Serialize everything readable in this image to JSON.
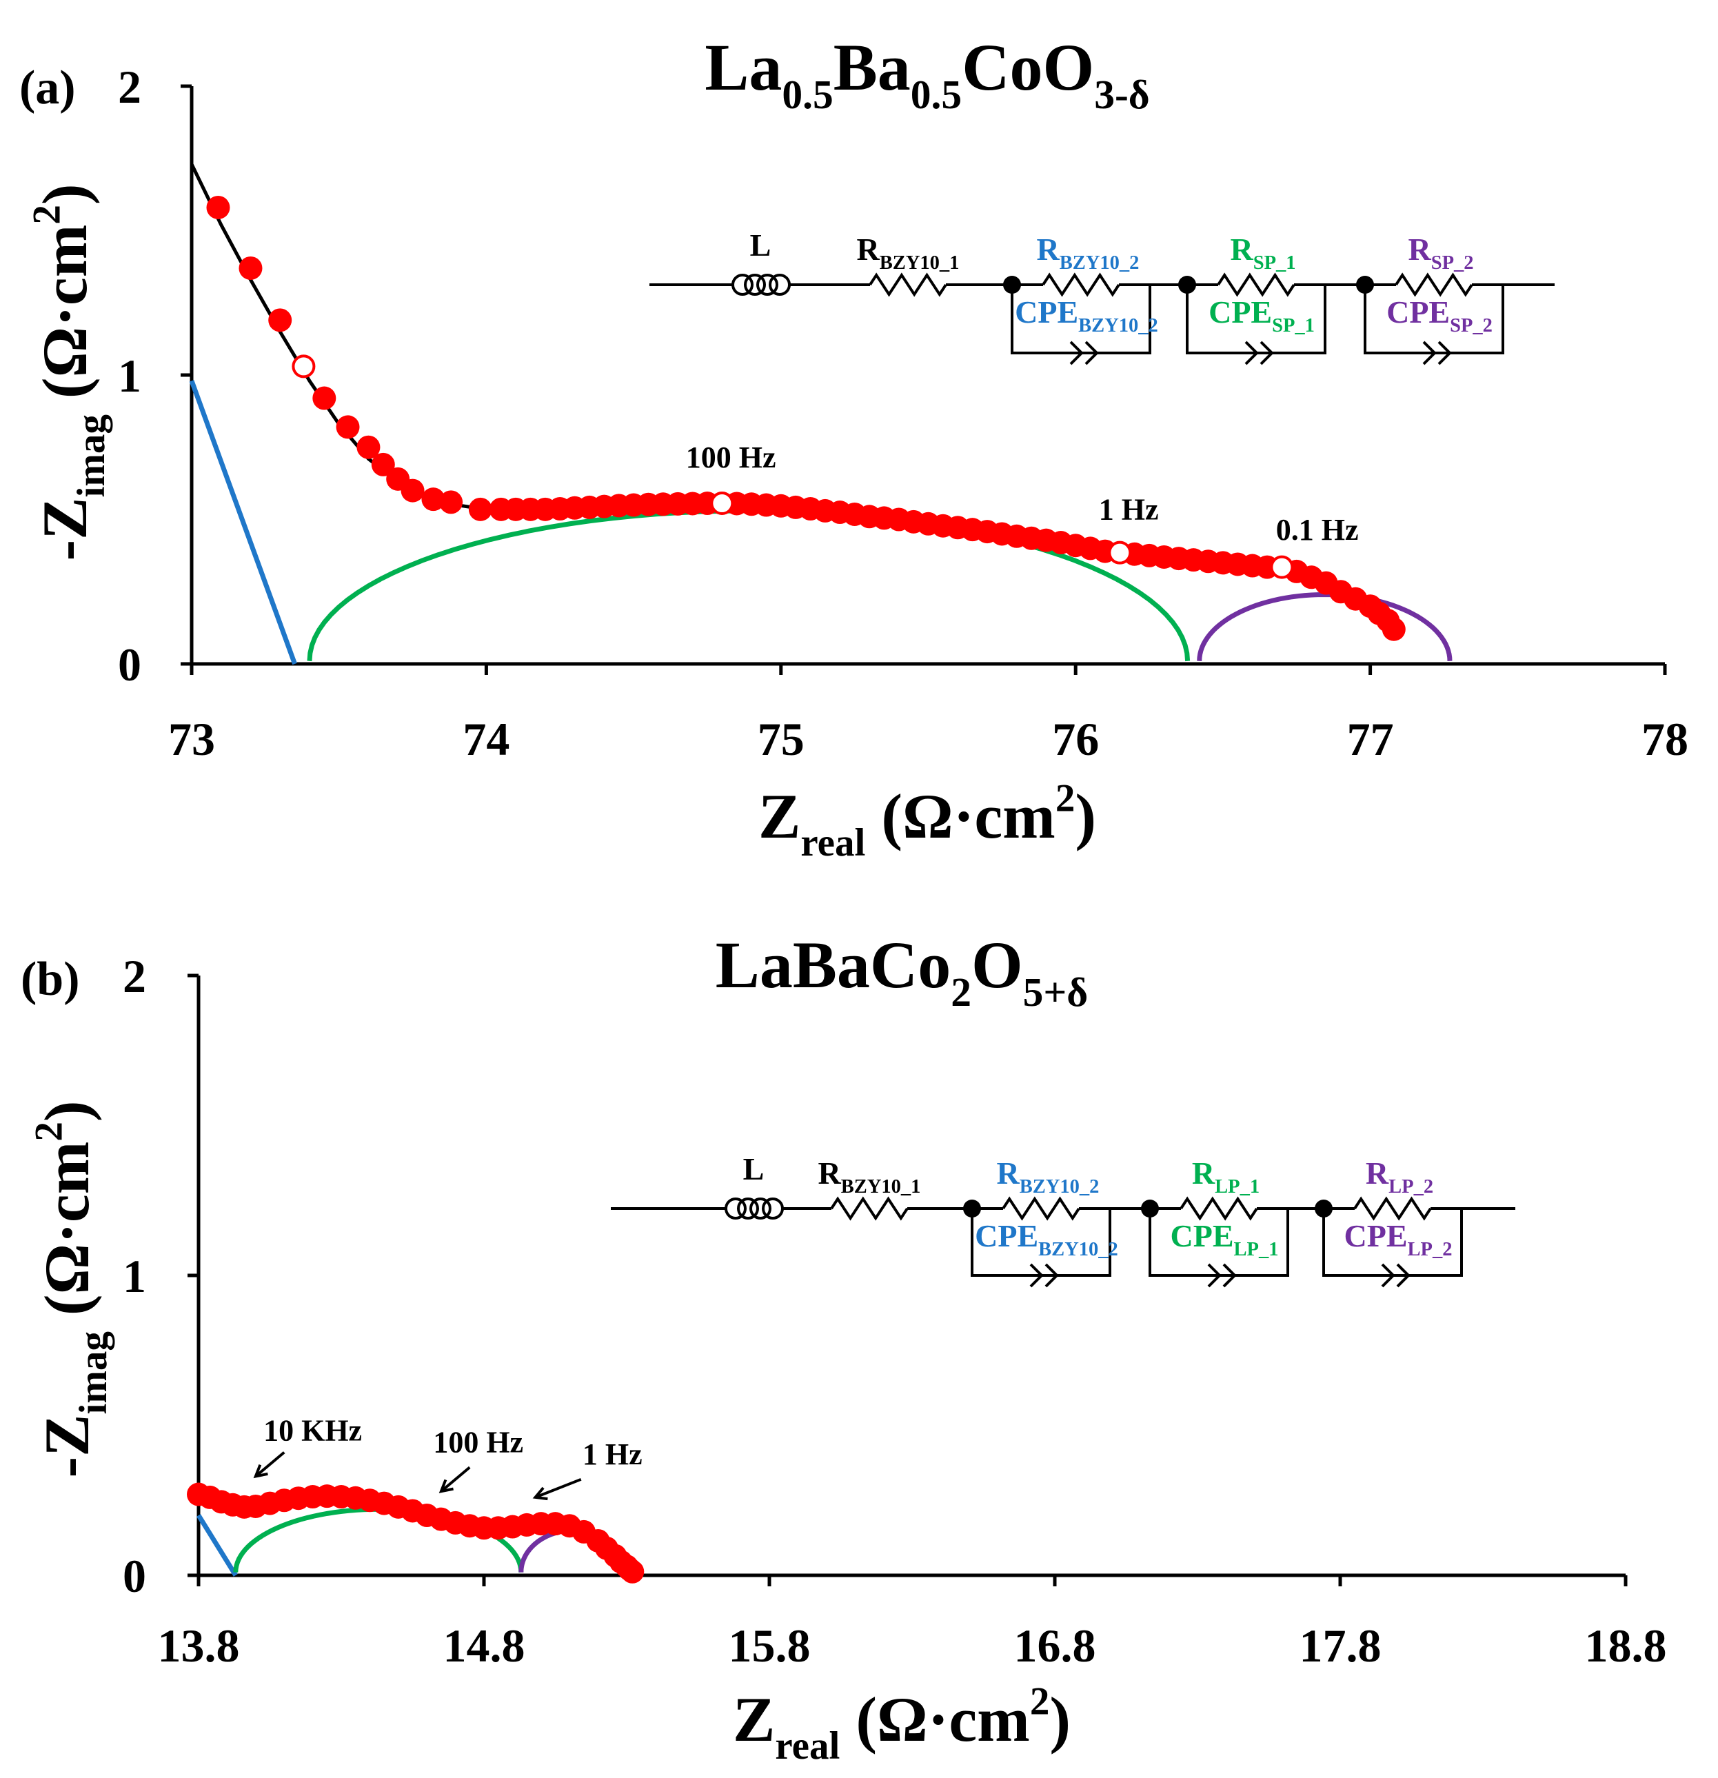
{
  "colors": {
    "data": "#ff0000",
    "fit": "#000000",
    "bzy10": "#1f77c9",
    "sp1": "#00b050",
    "sp2": "#7030a0"
  },
  "chart_data": [
    {
      "type": "scatter",
      "panel_label": "(a)",
      "title_parts": [
        {
          "t": "La"
        },
        {
          "t": "0.5",
          "sub": true
        },
        {
          "t": "Ba"
        },
        {
          "t": "0.5",
          "sub": true
        },
        {
          "t": "CoO"
        },
        {
          "t": "3-δ",
          "sub": true
        }
      ],
      "xlabel_parts": [
        {
          "t": "Z"
        },
        {
          "t": "real",
          "sub": true
        },
        {
          "t": " (Ω·cm"
        },
        {
          "t": "2",
          "sup": true
        },
        {
          "t": ")"
        }
      ],
      "ylabel_parts": [
        {
          "t": "-Z"
        },
        {
          "t": "imag",
          "sub": true
        },
        {
          "t": " (Ω·cm"
        },
        {
          "t": "2",
          "sup": true
        },
        {
          "t": ")"
        }
      ],
      "xlim": [
        73,
        78
      ],
      "ylim": [
        0,
        2
      ],
      "xticks": [
        73,
        74,
        75,
        76,
        77,
        78
      ],
      "xtick_labels": [
        "73",
        "74",
        "75",
        "76",
        "77",
        "78"
      ],
      "yticks": [
        0,
        1,
        2
      ],
      "ytick_labels": [
        "0",
        "1",
        "2"
      ],
      "data_x": [
        73.09,
        73.2,
        73.3,
        73.45,
        73.53,
        73.6,
        73.65,
        73.7,
        73.75,
        73.82,
        73.88,
        73.98,
        74.05,
        74.1,
        74.15,
        74.2,
        74.25,
        74.3,
        74.35,
        74.4,
        74.45,
        74.5,
        74.55,
        74.6,
        74.65,
        74.7,
        74.75,
        74.85,
        74.9,
        74.95,
        75.0,
        75.05,
        75.1,
        75.15,
        75.2,
        75.25,
        75.3,
        75.35,
        75.4,
        75.45,
        75.5,
        75.55,
        75.6,
        75.65,
        75.7,
        75.75,
        75.8,
        75.85,
        75.9,
        75.95,
        76.0,
        76.05,
        76.1,
        76.2,
        76.25,
        76.3,
        76.35,
        76.4,
        76.45,
        76.5,
        76.55,
        76.6,
        76.65,
        76.75,
        76.8,
        76.85,
        76.9,
        76.95,
        77.0,
        77.03,
        77.06,
        77.08
      ],
      "data_y": [
        1.58,
        1.37,
        1.19,
        0.92,
        0.82,
        0.75,
        0.69,
        0.64,
        0.6,
        0.57,
        0.56,
        0.535,
        0.535,
        0.535,
        0.535,
        0.535,
        0.537,
        0.54,
        0.542,
        0.545,
        0.548,
        0.55,
        0.552,
        0.553,
        0.554,
        0.555,
        0.556,
        0.555,
        0.553,
        0.55,
        0.547,
        0.542,
        0.537,
        0.53,
        0.525,
        0.518,
        0.51,
        0.505,
        0.5,
        0.492,
        0.485,
        0.478,
        0.472,
        0.465,
        0.458,
        0.45,
        0.442,
        0.435,
        0.428,
        0.42,
        0.41,
        0.4,
        0.39,
        0.38,
        0.375,
        0.37,
        0.365,
        0.36,
        0.355,
        0.35,
        0.345,
        0.34,
        0.335,
        0.32,
        0.3,
        0.28,
        0.25,
        0.225,
        0.2,
        0.175,
        0.15,
        0.12
      ],
      "open_markers": [
        {
          "x": 73.38,
          "y": 1.03
        },
        {
          "x": 74.8,
          "y": 0.556
        },
        {
          "x": 76.15,
          "y": 0.385
        },
        {
          "x": 76.7,
          "y": 0.335
        }
      ],
      "fit_x": [
        73.0,
        73.1,
        73.2,
        73.3,
        73.4,
        73.5,
        73.6,
        73.7,
        73.8,
        73.9,
        74.0,
        74.2,
        74.5,
        74.8,
        75.0,
        75.3,
        75.6,
        75.9,
        76.2,
        76.5,
        76.7,
        76.85,
        77.0,
        77.1
      ],
      "fit_y": [
        1.73,
        1.52,
        1.33,
        1.15,
        0.98,
        0.83,
        0.71,
        0.63,
        0.58,
        0.55,
        0.535,
        0.535,
        0.548,
        0.555,
        0.55,
        0.52,
        0.475,
        0.43,
        0.39,
        0.36,
        0.335,
        0.3,
        0.21,
        0.1
      ],
      "arc_bzy10": {
        "x0": 73.0,
        "x1": 73.35,
        "ymax": 0.98,
        "shape": "line"
      },
      "arc_sp1": {
        "x0": 73.4,
        "x1": 76.38,
        "ymax": 0.52
      },
      "arc_sp2": {
        "x0": 76.42,
        "x1": 77.27,
        "ymax": 0.23
      },
      "annotations": [
        {
          "text": "100 Hz",
          "x": 74.83,
          "y": 0.68
        },
        {
          "text": "1 Hz",
          "x": 76.18,
          "y": 0.5
        },
        {
          "text": "0.1 Hz",
          "x": 76.82,
          "y": 0.43
        }
      ],
      "circuit": {
        "L": "L",
        "r1": [
          {
            "t": "R"
          },
          {
            "t": "BZY10_1",
            "sub": true
          }
        ],
        "r2": [
          {
            "t": "R"
          },
          {
            "t": "BZY10_2",
            "sub": true
          }
        ],
        "c2": [
          {
            "t": "CPE"
          },
          {
            "t": "BZY10_2",
            "sub": true
          }
        ],
        "r3": [
          {
            "t": "R"
          },
          {
            "t": "SP_1",
            "sub": true
          }
        ],
        "c3": [
          {
            "t": "CPE"
          },
          {
            "t": "SP_1",
            "sub": true
          }
        ],
        "r4": [
          {
            "t": "R"
          },
          {
            "t": "SP_2",
            "sub": true
          }
        ],
        "c4": [
          {
            "t": "CPE"
          },
          {
            "t": "SP_2",
            "sub": true
          }
        ]
      }
    },
    {
      "type": "scatter",
      "panel_label": "(b)",
      "title_parts": [
        {
          "t": "LaBaCo"
        },
        {
          "t": "2",
          "sub": true
        },
        {
          "t": "O"
        },
        {
          "t": "5+δ",
          "sub": true
        }
      ],
      "xlabel_parts": [
        {
          "t": "Z"
        },
        {
          "t": "real",
          "sub": true
        },
        {
          "t": " (Ω·cm"
        },
        {
          "t": "2",
          "sup": true
        },
        {
          "t": ")"
        }
      ],
      "ylabel_parts": [
        {
          "t": "-Z"
        },
        {
          "t": "imag",
          "sub": true
        },
        {
          "t": " (Ω·cm"
        },
        {
          "t": "2",
          "sup": true
        },
        {
          "t": ")"
        }
      ],
      "xlim": [
        13.8,
        18.8
      ],
      "ylim": [
        0,
        2
      ],
      "xticks": [
        13.8,
        14.8,
        15.8,
        16.8,
        17.8,
        18.8
      ],
      "xtick_labels": [
        "13.8",
        "14.8",
        "15.8",
        "16.8",
        "17.8",
        "18.8"
      ],
      "yticks": [
        0,
        1,
        2
      ],
      "ytick_labels": [
        "0",
        "1",
        "2"
      ],
      "data_x": [
        13.8,
        13.84,
        13.88,
        13.92,
        13.96,
        14.0,
        14.05,
        14.1,
        14.15,
        14.2,
        14.25,
        14.3,
        14.35,
        14.4,
        14.45,
        14.5,
        14.55,
        14.6,
        14.65,
        14.7,
        14.75,
        14.8,
        14.85,
        14.9,
        14.95,
        15.0,
        15.05,
        15.1,
        15.15,
        15.2,
        15.23,
        15.26,
        15.28,
        15.3,
        15.31,
        15.32
      ],
      "data_y": [
        0.27,
        0.26,
        0.245,
        0.235,
        0.228,
        0.23,
        0.24,
        0.25,
        0.257,
        0.262,
        0.264,
        0.262,
        0.258,
        0.25,
        0.24,
        0.228,
        0.215,
        0.2,
        0.187,
        0.175,
        0.165,
        0.158,
        0.158,
        0.162,
        0.168,
        0.172,
        0.172,
        0.165,
        0.145,
        0.115,
        0.09,
        0.065,
        0.045,
        0.03,
        0.02,
        0.012
      ],
      "arc_bzy10": {
        "x0": 13.8,
        "x1": 13.93,
        "ymax": 0.2,
        "shape": "line"
      },
      "arc_sp1": {
        "x0": 13.93,
        "x1": 14.93,
        "ymax": 0.21
      },
      "arc_sp2": {
        "x0": 14.93,
        "x1": 15.3,
        "ymax": 0.14
      },
      "annotations": [
        {
          "text": "10 KHz",
          "x": 14.2,
          "y": 0.45
        },
        {
          "text": "100 Hz",
          "x": 14.78,
          "y": 0.41
        },
        {
          "text": "1 Hz",
          "x": 15.25,
          "y": 0.37
        }
      ],
      "circuit": {
        "L": "L",
        "r1": [
          {
            "t": "R"
          },
          {
            "t": "BZY10_1",
            "sub": true
          }
        ],
        "r2": [
          {
            "t": "R"
          },
          {
            "t": "BZY10_2",
            "sub": true
          }
        ],
        "c2": [
          {
            "t": "CPE"
          },
          {
            "t": "BZY10_2",
            "sub": true
          }
        ],
        "r3": [
          {
            "t": "R"
          },
          {
            "t": "LP_1",
            "sub": true
          }
        ],
        "c3": [
          {
            "t": "CPE"
          },
          {
            "t": "LP_1",
            "sub": true
          }
        ],
        "r4": [
          {
            "t": "R"
          },
          {
            "t": "LP_2",
            "sub": true
          }
        ],
        "c4": [
          {
            "t": "CPE"
          },
          {
            "t": "LP_2",
            "sub": true
          }
        ]
      }
    }
  ]
}
